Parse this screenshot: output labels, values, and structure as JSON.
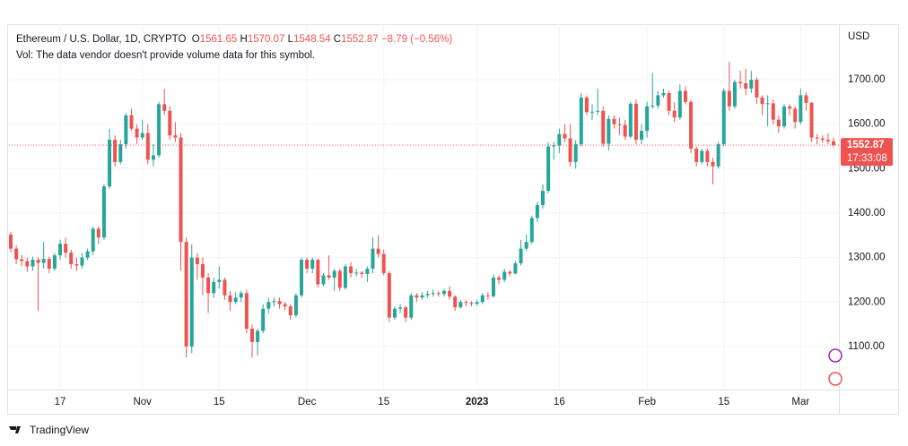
{
  "chart_data": {
    "type": "candlestick",
    "symbol": "Ethereum / U.S. Dollar, 1D, CRYPTO",
    "ohlc_prefixes": [
      "O",
      "H",
      "L",
      "C"
    ],
    "change_label": "−8.79 (−0.56%)",
    "volume_note": "Vol: The data vendor doesn't provide volume data for this symbol.",
    "currency": "USD",
    "countdown": "17:33:08",
    "brand": "TradingView",
    "up_color": "#26a69a",
    "down_color": "#ef5350",
    "categories": [
      null,
      null,
      null,
      null,
      null,
      null,
      null,
      null,
      null,
      "17",
      null,
      null,
      null,
      null,
      null,
      null,
      null,
      null,
      null,
      null,
      null,
      null,
      null,
      null,
      "Nov",
      null,
      null,
      null,
      null,
      null,
      null,
      null,
      null,
      null,
      null,
      null,
      null,
      null,
      "15",
      null,
      null,
      null,
      null,
      null,
      null,
      null,
      null,
      null,
      null,
      null,
      null,
      null,
      null,
      null,
      "Dec",
      null,
      null,
      null,
      null,
      null,
      null,
      null,
      null,
      null,
      null,
      null,
      null,
      null,
      "15",
      null,
      null,
      null,
      null,
      null,
      null,
      null,
      null,
      null,
      null,
      null,
      null,
      null,
      null,
      null,
      null,
      "2023",
      null,
      null,
      null,
      null,
      null,
      null,
      null,
      null,
      null,
      null,
      null,
      null,
      null,
      null,
      "16",
      null,
      null,
      null,
      null,
      null,
      null,
      null,
      null,
      null,
      null,
      null,
      null,
      null,
      null,
      null,
      "Feb",
      null,
      null,
      null,
      null,
      null,
      null,
      null,
      null,
      null,
      null,
      null,
      null,
      null,
      "15",
      null,
      null,
      null,
      null,
      null,
      null,
      null,
      null,
      null,
      null,
      null,
      null,
      null,
      "Mar",
      null,
      null,
      null,
      null,
      null,
      null
    ],
    "open": [
      1352,
      1320,
      1296,
      1292,
      1280,
      1295,
      1288,
      1297,
      1275,
      1305,
      1331,
      1311,
      1285,
      1282,
      1300,
      1314,
      1365,
      1345,
      1460,
      1565,
      1515,
      1555,
      1620,
      1590,
      1570,
      1580,
      1520,
      1530,
      1645,
      1630,
      1575,
      1570,
      1335,
      1100,
      1300,
      1285,
      1255,
      1220,
      1245,
      1250,
      1215,
      1200,
      1210,
      1220,
      1140,
      1110,
      1135,
      1185,
      1200,
      1202,
      1195,
      1190,
      1170,
      1215,
      1295,
      1275,
      1295,
      1240,
      1260,
      1255,
      1270,
      1232,
      1280,
      1265,
      1266,
      1263,
      1275,
      1320,
      1308,
      1265,
      1165,
      1185,
      1188,
      1165,
      1215,
      1210,
      1215,
      1218,
      1220,
      1218,
      1225,
      1212,
      1188,
      1200,
      1198,
      1196,
      1200,
      1215,
      1213,
      1255,
      1250,
      1268,
      1264,
      1287,
      1320,
      1335,
      1389,
      1418,
      1450,
      1550,
      1552,
      1578,
      1568,
      1515,
      1555,
      1660,
      1627,
      1628,
      1630,
      1556,
      1612,
      1600,
      1598,
      1572,
      1646,
      1565,
      1585,
      1640,
      1642,
      1665,
      1670,
      1630,
      1615,
      1675,
      1650,
      1545,
      1515,
      1540,
      1515,
      1505,
      1555,
      1675,
      1640,
      1695,
      1692,
      1680,
      1700,
      1660,
      1645,
      1647,
      1610,
      1595,
      1640,
      1635,
      1605,
      1665,
      1648,
      1570,
      1568,
      1565,
      1561.65
    ],
    "high": [
      1358,
      1328,
      1306,
      1300,
      1302,
      1300,
      1335,
      1302,
      1310,
      1340,
      1345,
      1318,
      1300,
      1310,
      1320,
      1370,
      1370,
      1465,
      1590,
      1575,
      1565,
      1625,
      1635,
      1600,
      1610,
      1600,
      1555,
      1650,
      1680,
      1640,
      1605,
      1580,
      1345,
      1330,
      1310,
      1300,
      1265,
      1255,
      1280,
      1255,
      1225,
      1222,
      1225,
      1228,
      1150,
      1140,
      1195,
      1210,
      1210,
      1210,
      1200,
      1195,
      1220,
      1300,
      1300,
      1300,
      1298,
      1265,
      1305,
      1275,
      1275,
      1285,
      1290,
      1275,
      1270,
      1280,
      1345,
      1350,
      1318,
      1270,
      1190,
      1195,
      1192,
      1220,
      1220,
      1222,
      1225,
      1228,
      1225,
      1230,
      1235,
      1215,
      1205,
      1205,
      1202,
      1205,
      1220,
      1222,
      1262,
      1260,
      1275,
      1272,
      1292,
      1340,
      1352,
      1395,
      1425,
      1465,
      1560,
      1560,
      1590,
      1600,
      1600,
      1565,
      1670,
      1665,
      1645,
      1680,
      1640,
      1620,
      1620,
      1615,
      1610,
      1650,
      1655,
      1600,
      1650,
      1715,
      1675,
      1680,
      1675,
      1650,
      1690,
      1685,
      1655,
      1550,
      1545,
      1545,
      1525,
      1560,
      1680,
      1740,
      1700,
      1720,
      1725,
      1720,
      1705,
      1665,
      1665,
      1655,
      1620,
      1645,
      1645,
      1640,
      1680,
      1672,
      1650,
      1578,
      1575,
      1580,
      1570.07
    ],
    "low": [
      1312,
      1285,
      1280,
      1268,
      1270,
      1180,
      1275,
      1265,
      1270,
      1295,
      1300,
      1275,
      1270,
      1275,
      1295,
      1305,
      1330,
      1340,
      1455,
      1505,
      1510,
      1545,
      1585,
      1555,
      1565,
      1510,
      1505,
      1525,
      1620,
      1565,
      1560,
      1270,
      1075,
      1085,
      1250,
      1215,
      1175,
      1210,
      1230,
      1205,
      1180,
      1195,
      1200,
      1130,
      1075,
      1080,
      1130,
      1175,
      1190,
      1185,
      1180,
      1160,
      1165,
      1210,
      1265,
      1265,
      1232,
      1235,
      1250,
      1225,
      1225,
      1228,
      1255,
      1258,
      1255,
      1245,
      1265,
      1300,
      1260,
      1155,
      1160,
      1175,
      1155,
      1160,
      1200,
      1205,
      1210,
      1212,
      1212,
      1212,
      1205,
      1180,
      1185,
      1190,
      1190,
      1192,
      1195,
      1205,
      1210,
      1240,
      1245,
      1258,
      1262,
      1282,
      1315,
      1330,
      1380,
      1410,
      1445,
      1520,
      1535,
      1560,
      1505,
      1500,
      1550,
      1620,
      1610,
      1620,
      1550,
      1540,
      1590,
      1575,
      1565,
      1568,
      1555,
      1555,
      1570,
      1635,
      1635,
      1660,
      1620,
      1605,
      1610,
      1645,
      1535,
      1505,
      1510,
      1505,
      1465,
      1500,
      1550,
      1630,
      1635,
      1680,
      1665,
      1670,
      1645,
      1620,
      1595,
      1600,
      1580,
      1590,
      1620,
      1590,
      1600,
      1630,
      1560,
      1555,
      1558,
      1555,
      1548.54
    ],
    "close": [
      1320,
      1296,
      1292,
      1280,
      1295,
      1288,
      1297,
      1275,
      1305,
      1331,
      1311,
      1285,
      1282,
      1300,
      1314,
      1365,
      1345,
      1460,
      1565,
      1515,
      1555,
      1620,
      1590,
      1570,
      1580,
      1520,
      1530,
      1645,
      1630,
      1575,
      1570,
      1335,
      1100,
      1300,
      1285,
      1255,
      1220,
      1245,
      1250,
      1215,
      1200,
      1210,
      1220,
      1140,
      1110,
      1135,
      1185,
      1200,
      1202,
      1195,
      1190,
      1170,
      1215,
      1295,
      1275,
      1295,
      1240,
      1260,
      1255,
      1270,
      1232,
      1280,
      1265,
      1266,
      1263,
      1275,
      1320,
      1308,
      1265,
      1165,
      1185,
      1188,
      1165,
      1215,
      1210,
      1215,
      1218,
      1220,
      1218,
      1225,
      1212,
      1188,
      1200,
      1198,
      1196,
      1200,
      1215,
      1213,
      1255,
      1250,
      1268,
      1264,
      1287,
      1320,
      1335,
      1389,
      1418,
      1450,
      1550,
      1552,
      1578,
      1568,
      1515,
      1555,
      1660,
      1627,
      1628,
      1630,
      1556,
      1612,
      1600,
      1598,
      1572,
      1646,
      1565,
      1585,
      1640,
      1642,
      1665,
      1670,
      1630,
      1615,
      1675,
      1650,
      1545,
      1515,
      1540,
      1515,
      1505,
      1555,
      1675,
      1640,
      1695,
      1692,
      1680,
      1700,
      1660,
      1645,
      1647,
      1610,
      1595,
      1640,
      1635,
      1605,
      1665,
      1648,
      1570,
      1568,
      1565,
      1561.65,
      1552.87
    ],
    "ylim": [
      1003,
      1825
    ],
    "yticks": [
      {
        "value": 1100,
        "label": "1100.00"
      },
      {
        "value": 1200,
        "label": "1200.00"
      },
      {
        "value": 1300,
        "label": "1300.00"
      },
      {
        "value": 1400,
        "label": "1400.00"
      },
      {
        "value": 1500,
        "label": "1500.00"
      },
      {
        "value": 1600,
        "label": "1600.00"
      },
      {
        "value": 1700,
        "label": "1700.00"
      }
    ],
    "grid": true
  }
}
